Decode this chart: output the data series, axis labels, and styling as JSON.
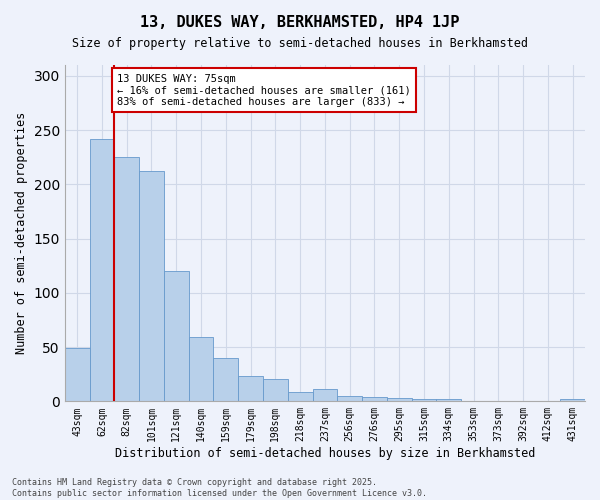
{
  "title": "13, DUKES WAY, BERKHAMSTED, HP4 1JP",
  "subtitle": "Size of property relative to semi-detached houses in Berkhamsted",
  "xlabel": "Distribution of semi-detached houses by size in Berkhamsted",
  "ylabel": "Number of semi-detached properties",
  "categories": [
    "43sqm",
    "62sqm",
    "82sqm",
    "101sqm",
    "121sqm",
    "140sqm",
    "159sqm",
    "179sqm",
    "198sqm",
    "218sqm",
    "237sqm",
    "256sqm",
    "276sqm",
    "295sqm",
    "315sqm",
    "334sqm",
    "353sqm",
    "373sqm",
    "392sqm",
    "412sqm",
    "431sqm"
  ],
  "bar_values": [
    49,
    242,
    225,
    212,
    120,
    59,
    40,
    23,
    21,
    9,
    11,
    5,
    4,
    3,
    2,
    2,
    0,
    0,
    0,
    0,
    2
  ],
  "bar_color": "#b8d0ea",
  "bar_edge_color": "#6699cc",
  "grid_color": "#d0d8e8",
  "annotation_text": "13 DUKES WAY: 75sqm\n← 16% of semi-detached houses are smaller (161)\n83% of semi-detached houses are larger (833) →",
  "annotation_box_color": "#ffffff",
  "annotation_box_edge": "#cc0000",
  "vline_color": "#cc0000",
  "ylim": [
    0,
    310
  ],
  "yticks": [
    0,
    50,
    100,
    150,
    200,
    250,
    300
  ],
  "footnote": "Contains HM Land Registry data © Crown copyright and database right 2025.\nContains public sector information licensed under the Open Government Licence v3.0.",
  "background_color": "#eef2fb"
}
